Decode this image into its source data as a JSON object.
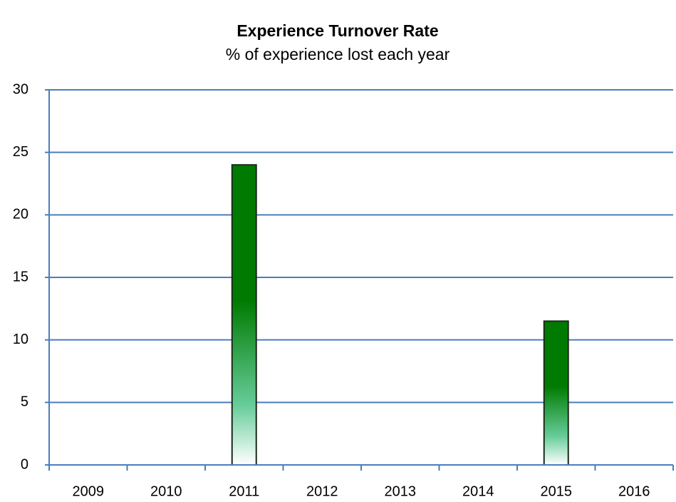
{
  "chart_data": {
    "type": "bar",
    "title": "Experience Turnover Rate",
    "subtitle": "% of experience lost each year",
    "categories": [
      "2009",
      "2010",
      "2011",
      "2012",
      "2013",
      "2014",
      "2015",
      "2016"
    ],
    "values": [
      null,
      null,
      24,
      null,
      null,
      null,
      11.5,
      null
    ],
    "color": "#007a00",
    "ylim": [
      0,
      30
    ],
    "yticks": [
      0,
      5,
      10,
      15,
      20,
      25,
      30
    ],
    "grid": true
  }
}
